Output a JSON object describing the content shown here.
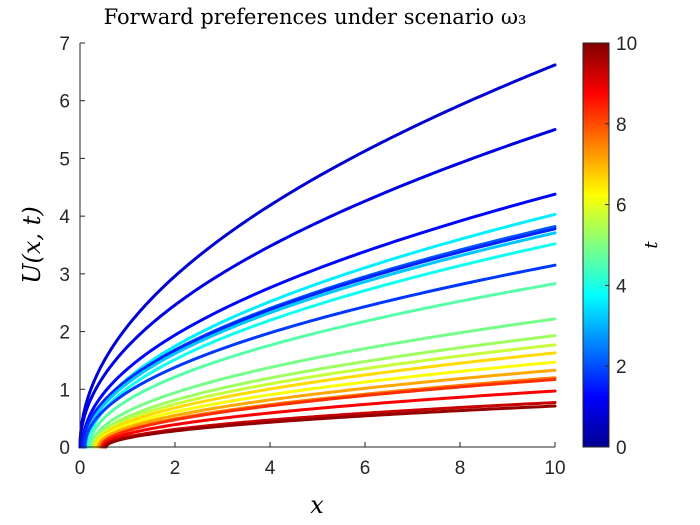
{
  "chart_data": {
    "type": "line",
    "title": "Forward preferences under scenario ω₃",
    "xlabel": "x",
    "ylabel": "U(x, t)",
    "xlim": [
      0,
      10
    ],
    "ylim": [
      0,
      7
    ],
    "xticks": [
      "0",
      "2",
      "4",
      "6",
      "8",
      "10"
    ],
    "yticks": [
      "0",
      "1",
      "2",
      "3",
      "4",
      "5",
      "6",
      "7"
    ],
    "grid": false,
    "colorbar": {
      "label": "t",
      "range": [
        0,
        10
      ],
      "ticks": [
        "0",
        "2",
        "4",
        "6",
        "8",
        "10"
      ],
      "colormap": "jet"
    },
    "series": [
      {
        "t": 0.8,
        "x0": 0.0,
        "end_value": 6.62
      },
      {
        "t": 1.0,
        "x0": 0.0,
        "end_value": 5.5
      },
      {
        "t": 1.3,
        "x0": 0.05,
        "end_value": 4.38
      },
      {
        "t": 3.6,
        "x0": 0.15,
        "end_value": 4.03
      },
      {
        "t": 2.1,
        "x0": 0.08,
        "end_value": 3.82
      },
      {
        "t": 1.6,
        "x0": 0.06,
        "end_value": 3.78
      },
      {
        "t": 3.2,
        "x0": 0.12,
        "end_value": 3.71
      },
      {
        "t": 3.9,
        "x0": 0.18,
        "end_value": 3.52
      },
      {
        "t": 1.8,
        "x0": 0.1,
        "end_value": 3.15
      },
      {
        "t": 4.6,
        "x0": 0.2,
        "end_value": 2.83
      },
      {
        "t": 4.9,
        "x0": 0.25,
        "end_value": 2.22
      },
      {
        "t": 5.3,
        "x0": 0.28,
        "end_value": 1.93
      },
      {
        "t": 5.7,
        "x0": 0.3,
        "end_value": 1.77
      },
      {
        "t": 6.6,
        "x0": 0.33,
        "end_value": 1.63
      },
      {
        "t": 6.2,
        "x0": 0.35,
        "end_value": 1.47
      },
      {
        "t": 7.1,
        "x0": 0.38,
        "end_value": 1.33
      },
      {
        "t": 7.5,
        "x0": 0.42,
        "end_value": 1.2
      },
      {
        "t": 8.3,
        "x0": 0.45,
        "end_value": 1.17
      },
      {
        "t": 8.8,
        "x0": 0.48,
        "end_value": 0.97
      },
      {
        "t": 9.3,
        "x0": 0.52,
        "end_value": 0.77
      },
      {
        "t": 9.8,
        "x0": 0.55,
        "end_value": 0.71
      }
    ]
  }
}
